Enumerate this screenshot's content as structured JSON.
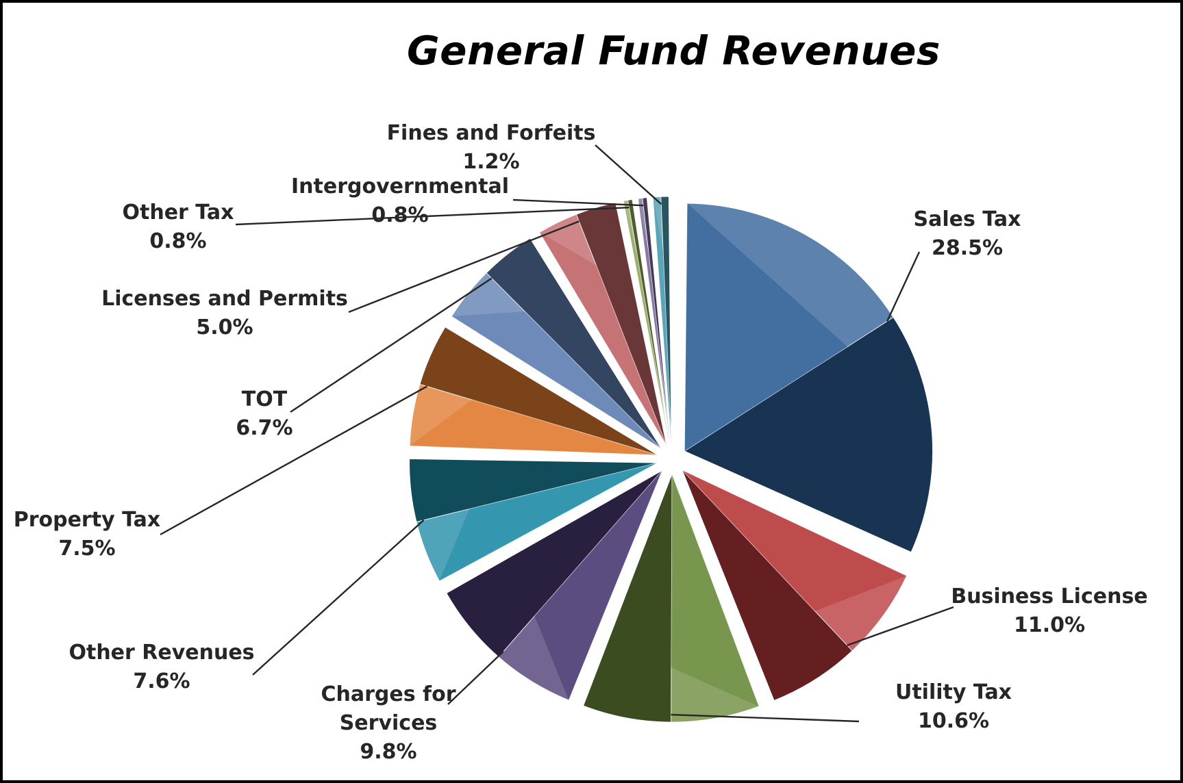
{
  "chart_data": {
    "type": "pie",
    "title": "General Fund Revenues",
    "slices": [
      {
        "label": "Sales Tax",
        "label_lines": [
          "Sales Tax"
        ],
        "pct_text": "28.5%",
        "value": 28.5,
        "color": "#2e5f96"
      },
      {
        "label": "Business License",
        "label_lines": [
          "Business License"
        ],
        "pct_text": "11.0%",
        "value": 11.0,
        "color": "#b8383a"
      },
      {
        "label": "Utility Tax",
        "label_lines": [
          "Utility Tax"
        ],
        "pct_text": "10.6%",
        "value": 10.6,
        "color": "#6a8a3a"
      },
      {
        "label": "Charges for Services",
        "label_lines": [
          "Charges for",
          "Services"
        ],
        "pct_text": "9.8%",
        "value": 9.8,
        "color": "#4a3a72"
      },
      {
        "label": "Other Revenues",
        "label_lines": [
          "Other Revenues"
        ],
        "pct_text": "7.6%",
        "value": 7.6,
        "color": "#1f8aa6"
      },
      {
        "label": "Property Tax",
        "label_lines": [
          "Property Tax"
        ],
        "pct_text": "7.5%",
        "value": 7.5,
        "color": "#e07a2e"
      },
      {
        "label": "TOT",
        "label_lines": [
          "TOT"
        ],
        "pct_text": "6.7%",
        "value": 6.7,
        "color": "#5e7eb0"
      },
      {
        "label": "Licenses and Permits",
        "label_lines": [
          "Licenses and Permits"
        ],
        "pct_text": "5.0%",
        "value": 5.0,
        "color": "#c06466"
      },
      {
        "label": "Other Tax",
        "label_lines": [
          "Other Tax"
        ],
        "pct_text": "0.8%",
        "value": 0.8,
        "color": "#8fa85a"
      },
      {
        "label": "Intergovernmental",
        "label_lines": [
          "Intergovernmental"
        ],
        "pct_text": "0.8%",
        "value": 0.8,
        "color": "#7a6a9a"
      },
      {
        "label": "Fines and Forfeits",
        "label_lines": [
          "Fines and Forfeits"
        ],
        "pct_text": "1.2%",
        "value": 1.2,
        "color": "#4a9ab0"
      }
    ]
  }
}
